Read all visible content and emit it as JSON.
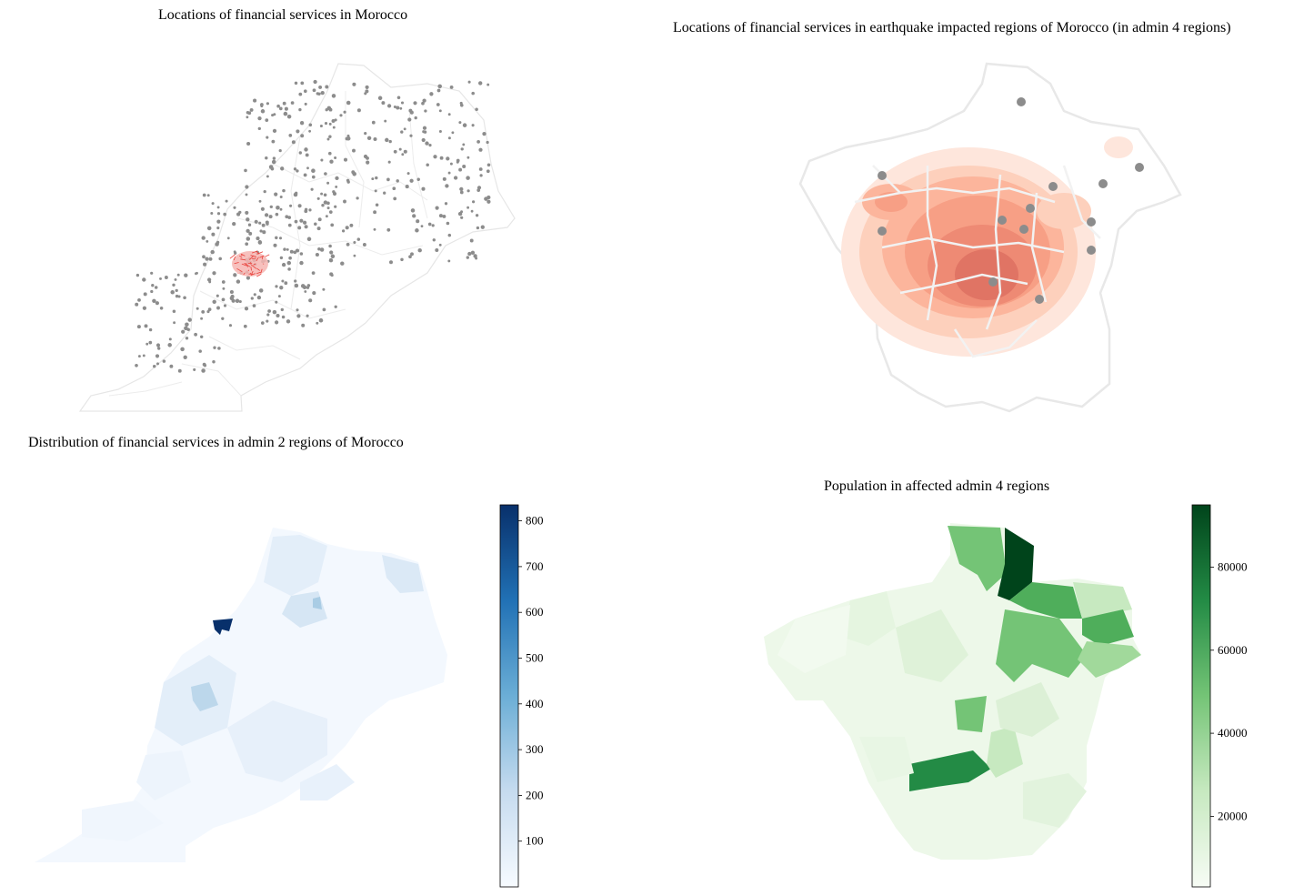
{
  "panels": [
    {
      "id": "morocco-points",
      "title": "Locations of financial services in Morocco",
      "point_color": "#8c8c8c",
      "highlight_color": "#e8403a",
      "border_color": "#e6e6e6"
    },
    {
      "id": "impacted-kde",
      "title": "Locations of financial services in earthquake impacted regions of Morocco (in admin 4 regions)",
      "point_color": "#8c8c8c",
      "density_colormap": "Reds",
      "border_color": "#e6e6e6"
    },
    {
      "id": "admin2-choropleth",
      "title": "Distribution of financial services in admin 2 regions of Morocco",
      "colormap": "Blues",
      "colorbar": {
        "min": 0,
        "max": 835,
        "ticks": [
          "100",
          "200",
          "300",
          "400",
          "500",
          "600",
          "700",
          "800"
        ]
      }
    },
    {
      "id": "admin4-population",
      "title": "Population in affected admin 4 regions",
      "colormap": "Greens",
      "colorbar": {
        "min": 3000,
        "max": 95000,
        "ticks": [
          "20000",
          "40000",
          "60000",
          "80000"
        ]
      }
    }
  ]
}
